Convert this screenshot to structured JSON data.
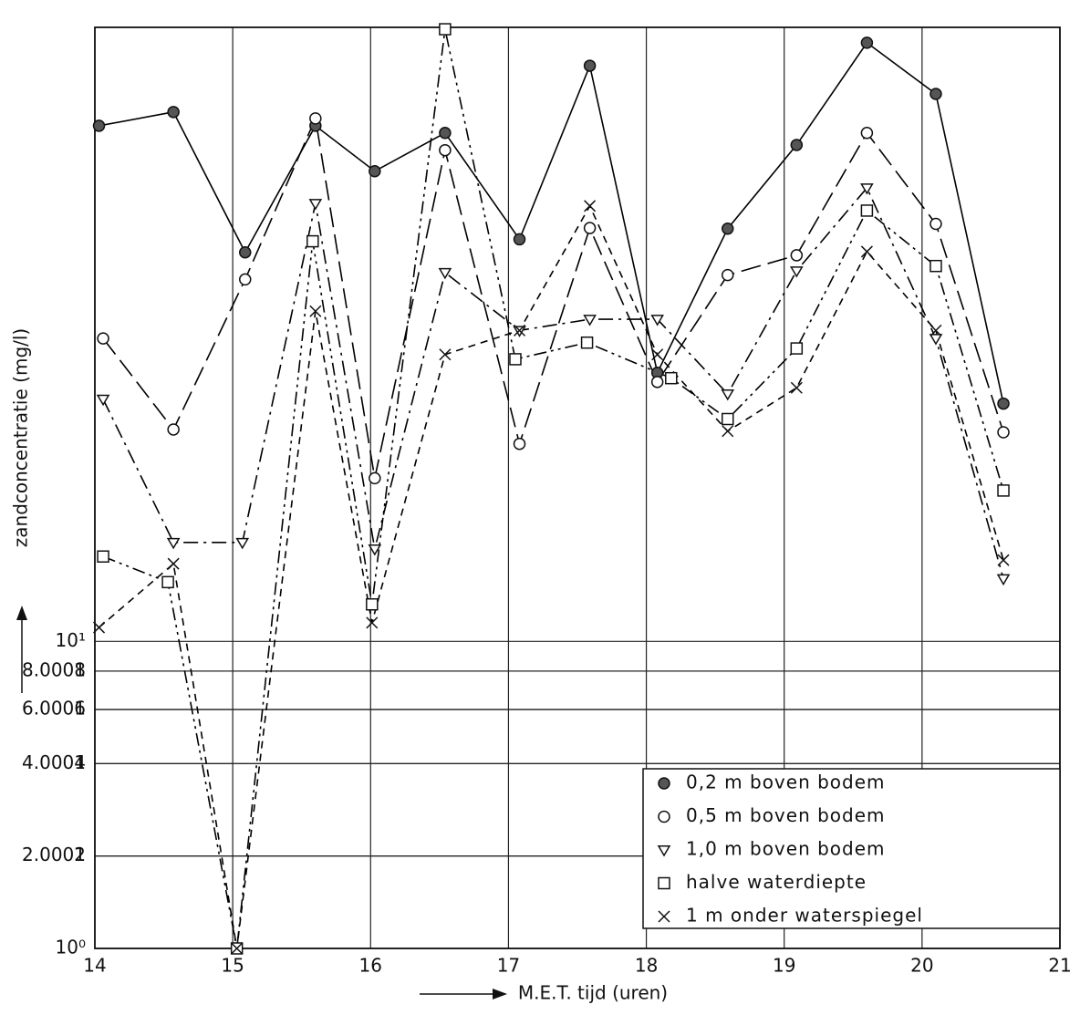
{
  "chart_data": {
    "type": "line",
    "xlabel": "M.E.T. tijd (uren)",
    "ylabel": "zandconcentratie (mg/l)",
    "xlim": [
      14,
      21
    ],
    "xticks": [
      14,
      15,
      16,
      17,
      18,
      19,
      20,
      21
    ],
    "ylim": [
      1,
      1000
    ],
    "log_y": true,
    "grid": true,
    "legend": "lower right",
    "yticks": [
      {
        "value": 1,
        "label": "10⁰"
      },
      2,
      4,
      6,
      8,
      {
        "value": 10,
        "label": "10¹"
      },
      2.0001,
      4.0001,
      6.0001,
      8.0001
    ],
    "series": [
      {
        "name": "0,2 m boven bodem",
        "color": "#000000",
        "marker": "filled-circle",
        "line_style": "solid",
        "x": [
          14.03,
          14.57,
          15.09,
          15.6,
          16.03,
          16.54,
          17.08,
          17.59,
          18.08,
          18.59,
          19.09,
          19.6,
          20.1,
          20.59
        ],
        "values": [
          478,
          530,
          185,
          478,
          340,
          453,
          204,
          750,
          75,
          221,
          414,
          891,
          607,
          59.5
        ]
      },
      {
        "name": "0,5 m boven bodem",
        "color": "#000000",
        "marker": "open-circle",
        "line_style": "dashed",
        "x": [
          14.06,
          14.57,
          15.09,
          15.6,
          16.03,
          16.54,
          17.08,
          17.59,
          18.08,
          18.59,
          19.09,
          19.6,
          20.1,
          20.59
        ],
        "values": [
          97,
          49,
          151,
          505,
          34,
          398,
          44,
          222,
          70,
          156,
          181,
          453,
          229,
          48
        ]
      },
      {
        "name": "1,0 m boven bodem",
        "color": "#000000",
        "marker": "triangle-down",
        "line_style": "dashdot",
        "x": [
          14.06,
          14.57,
          15.07,
          15.6,
          16.03,
          16.54,
          17.08,
          17.59,
          18.08,
          18.59,
          19.09,
          19.6,
          20.1,
          20.59
        ],
        "values": [
          61.5,
          21,
          21,
          267,
          20,
          159,
          103,
          112,
          112,
          64,
          161,
          300,
          97,
          16
        ]
      },
      {
        "name": "halve waterdiepte",
        "color": "#000000",
        "marker": "square",
        "line_style": "dashdotdot",
        "x": [
          14.06,
          14.53,
          15.03,
          15.58,
          16.01,
          16.54,
          17.05,
          17.57,
          18.18,
          18.59,
          19.09,
          19.6,
          20.1,
          20.59
        ],
        "values": [
          18.9,
          15.6,
          1.0,
          201,
          13.2,
          986,
          83,
          94,
          72,
          53,
          90,
          253,
          167,
          31
        ]
      },
      {
        "name": "1 m onder waterspiegel",
        "color": "#000000",
        "marker": "cross",
        "line_style": "short-dashed",
        "x": [
          14.03,
          14.57,
          15.03,
          15.6,
          16.01,
          16.54,
          17.08,
          17.59,
          18.08,
          18.59,
          19.09,
          19.6,
          20.1,
          20.59
        ],
        "values": [
          11.1,
          17.9,
          1.0,
          119,
          11.5,
          86,
          103,
          262,
          86,
          48.4,
          67,
          186,
          103,
          18.4
        ]
      }
    ]
  }
}
